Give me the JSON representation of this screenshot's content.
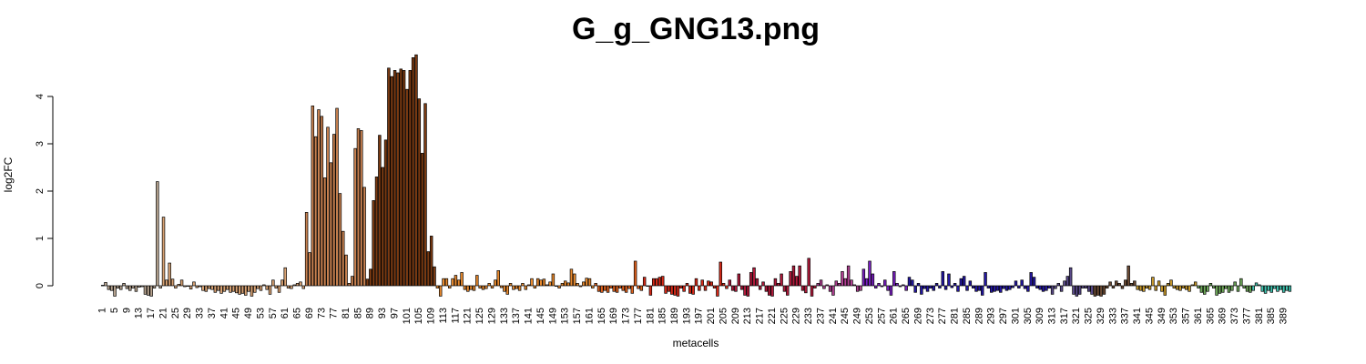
{
  "chart_data": {
    "type": "bar",
    "title": "G_g_GNG13.png",
    "xlabel": "metacells",
    "ylabel": "log2FC",
    "ylim": [
      -0.3,
      4.9
    ],
    "yticks": [
      0,
      1,
      2,
      3,
      4
    ],
    "n_bars": 395,
    "x_tick_first": 1,
    "x_tick_step": 4,
    "grid": false,
    "legend": "none",
    "colors": {
      "g1": "#b8a48f",
      "g2": "#d8a273",
      "g3": "#c88150",
      "g4": "#7a3a12",
      "g5": "#e98a2e",
      "g6": "#e2621d",
      "g7": "#d92a18",
      "g8": "#b0193a",
      "g9": "#b23f93",
      "g10": "#7a1fc2",
      "g11": "#2417a4",
      "g12": "#5a4a8a",
      "g13": "#6b4a33",
      "g14": "#c99a2b",
      "g15": "#6faa5a",
      "g16": "#40c4b0"
    },
    "color_groups": [
      {
        "color_key": "g1",
        "from": 1,
        "to": 20
      },
      {
        "color_key": "g2",
        "from": 21,
        "to": 67
      },
      {
        "color_key": "g3",
        "from": 68,
        "to": 87
      },
      {
        "color_key": "g4",
        "from": 88,
        "to": 110
      },
      {
        "color_key": "g5",
        "from": 111,
        "to": 162
      },
      {
        "color_key": "g6",
        "from": 163,
        "to": 178
      },
      {
        "color_key": "g7",
        "from": 179,
        "to": 206
      },
      {
        "color_key": "g8",
        "from": 207,
        "to": 235
      },
      {
        "color_key": "g9",
        "from": 236,
        "to": 250
      },
      {
        "color_key": "g10",
        "from": 251,
        "to": 265
      },
      {
        "color_key": "g11",
        "from": 266,
        "to": 312
      },
      {
        "color_key": "g12",
        "from": 313,
        "to": 326
      },
      {
        "color_key": "g13",
        "from": 327,
        "to": 340
      },
      {
        "color_key": "g14",
        "from": 341,
        "to": 360
      },
      {
        "color_key": "g15",
        "from": 361,
        "to": 378
      },
      {
        "color_key": "g16",
        "from": 379,
        "to": 395
      }
    ],
    "values": [
      0.01,
      0.07,
      -0.08,
      -0.1,
      -0.22,
      -0.05,
      -0.08,
      0.05,
      -0.06,
      -0.1,
      -0.05,
      -0.12,
      -0.03,
      -0.02,
      -0.18,
      -0.2,
      -0.22,
      -0.05,
      2.2,
      -0.05,
      1.45,
      0.12,
      0.48,
      0.14,
      -0.05,
      0.03,
      0.12,
      -0.02,
      0.0,
      -0.07,
      0.08,
      -0.04,
      -0.02,
      -0.1,
      -0.12,
      -0.06,
      -0.08,
      -0.14,
      -0.1,
      -0.16,
      -0.12,
      -0.08,
      -0.14,
      -0.12,
      -0.15,
      -0.18,
      -0.16,
      -0.2,
      -0.12,
      -0.22,
      -0.14,
      -0.06,
      -0.1,
      0.02,
      -0.08,
      -0.18,
      0.12,
      -0.05,
      -0.14,
      0.12,
      0.38,
      -0.05,
      -0.06,
      0.02,
      0.05,
      0.08,
      -0.06,
      1.55,
      0.7,
      3.8,
      3.15,
      3.72,
      3.58,
      2.28,
      3.35,
      2.6,
      3.2,
      3.75,
      1.95,
      1.15,
      0.65,
      0.05,
      0.2,
      2.9,
      3.32,
      3.28,
      2.08,
      0.14,
      0.35,
      1.8,
      2.3,
      3.18,
      2.5,
      3.08,
      4.6,
      4.42,
      4.55,
      4.5,
      4.58,
      4.55,
      4.15,
      4.55,
      4.82,
      4.88,
      3.95,
      2.8,
      3.85,
      0.72,
      1.05,
      0.4,
      -0.05,
      -0.22,
      0.15,
      0.15,
      -0.05,
      0.15,
      0.22,
      0.12,
      0.28,
      -0.08,
      -0.12,
      -0.08,
      -0.1,
      0.22,
      -0.05,
      -0.08,
      -0.06,
      0.05,
      -0.05,
      0.12,
      0.32,
      -0.04,
      -0.12,
      -0.18,
      0.05,
      -0.08,
      -0.06,
      -0.1,
      0.05,
      -0.08,
      0.02,
      0.15,
      -0.05,
      0.15,
      0.12,
      0.14,
      0.02,
      0.08,
      0.25,
      0.0,
      -0.05,
      0.05,
      0.1,
      0.06,
      0.35,
      0.25,
      0.05,
      -0.02,
      0.08,
      0.16,
      0.15,
      -0.05,
      0.05,
      -0.12,
      -0.14,
      -0.1,
      -0.14,
      -0.05,
      -0.12,
      -0.14,
      -0.05,
      -0.1,
      -0.14,
      -0.06,
      -0.16,
      0.52,
      -0.06,
      -0.1,
      0.18,
      0.0,
      -0.2,
      0.15,
      0.15,
      0.18,
      0.2,
      -0.16,
      -0.12,
      -0.18,
      -0.2,
      -0.22,
      -0.05,
      -0.12,
      0.05,
      -0.16,
      -0.18,
      0.15,
      -0.1,
      0.12,
      -0.1,
      0.1,
      0.08,
      -0.05,
      -0.22,
      0.5,
      0.05,
      -0.06,
      0.12,
      -0.1,
      -0.12,
      0.25,
      -0.08,
      -0.2,
      -0.22,
      0.28,
      0.38,
      0.15,
      -0.08,
      0.08,
      -0.12,
      -0.2,
      -0.22,
      0.15,
      0.05,
      0.25,
      -0.12,
      -0.2,
      0.3,
      0.42,
      0.2,
      0.42,
      -0.1,
      -0.15,
      0.58,
      -0.22,
      -0.05,
      0.05,
      0.12,
      -0.06,
      0.02,
      -0.12,
      -0.2,
      0.1,
      0.05,
      0.3,
      0.15,
      0.42,
      0.12,
      0.02,
      -0.12,
      -0.1,
      0.35,
      0.15,
      0.52,
      0.25,
      -0.05,
      0.05,
      -0.02,
      0.12,
      -0.1,
      -0.2,
      0.3,
      0.05,
      -0.02,
      0.02,
      -0.1,
      0.18,
      0.12,
      -0.14,
      0.05,
      -0.18,
      -0.06,
      -0.12,
      -0.05,
      -0.1,
      0.05,
      -0.05,
      0.3,
      -0.08,
      0.25,
      -0.04,
      0.05,
      -0.12,
      0.15,
      0.2,
      -0.1,
      0.1,
      -0.05,
      -0.12,
      -0.1,
      -0.2,
      0.28,
      -0.05,
      -0.14,
      -0.12,
      -0.1,
      -0.14,
      -0.06,
      -0.1,
      -0.08,
      -0.04,
      0.1,
      -0.05,
      0.12,
      -0.06,
      -0.12,
      0.28,
      0.18,
      -0.05,
      -0.08,
      -0.12,
      -0.1,
      -0.05,
      -0.18,
      -0.06,
      0.05,
      -0.12,
      0.1,
      0.2,
      0.38,
      -0.18,
      -0.22,
      -0.18,
      -0.05,
      -0.05,
      -0.12,
      -0.18,
      -0.22,
      -0.2,
      -0.22,
      -0.18,
      -0.05,
      0.08,
      -0.05,
      0.1,
      0.05,
      -0.06,
      0.12,
      0.42,
      0.05,
      0.1,
      -0.08,
      -0.1,
      -0.12,
      -0.05,
      -0.08,
      0.18,
      -0.1,
      0.1,
      -0.12,
      -0.2,
      0.05,
      0.12,
      -0.05,
      -0.08,
      -0.1,
      -0.05,
      -0.08,
      -0.12,
      0.02,
      0.08,
      -0.05,
      -0.14,
      -0.18,
      -0.12,
      0.05,
      -0.05,
      -0.2,
      -0.16,
      -0.14,
      -0.06,
      -0.14,
      -0.1,
      0.08,
      -0.12,
      0.15,
      -0.05,
      -0.12,
      -0.14,
      -0.1,
      0.06,
      0.02,
      -0.12,
      -0.16,
      -0.1,
      -0.14,
      -0.06,
      -0.12,
      -0.08,
      -0.14,
      -0.1,
      -0.12
    ]
  }
}
